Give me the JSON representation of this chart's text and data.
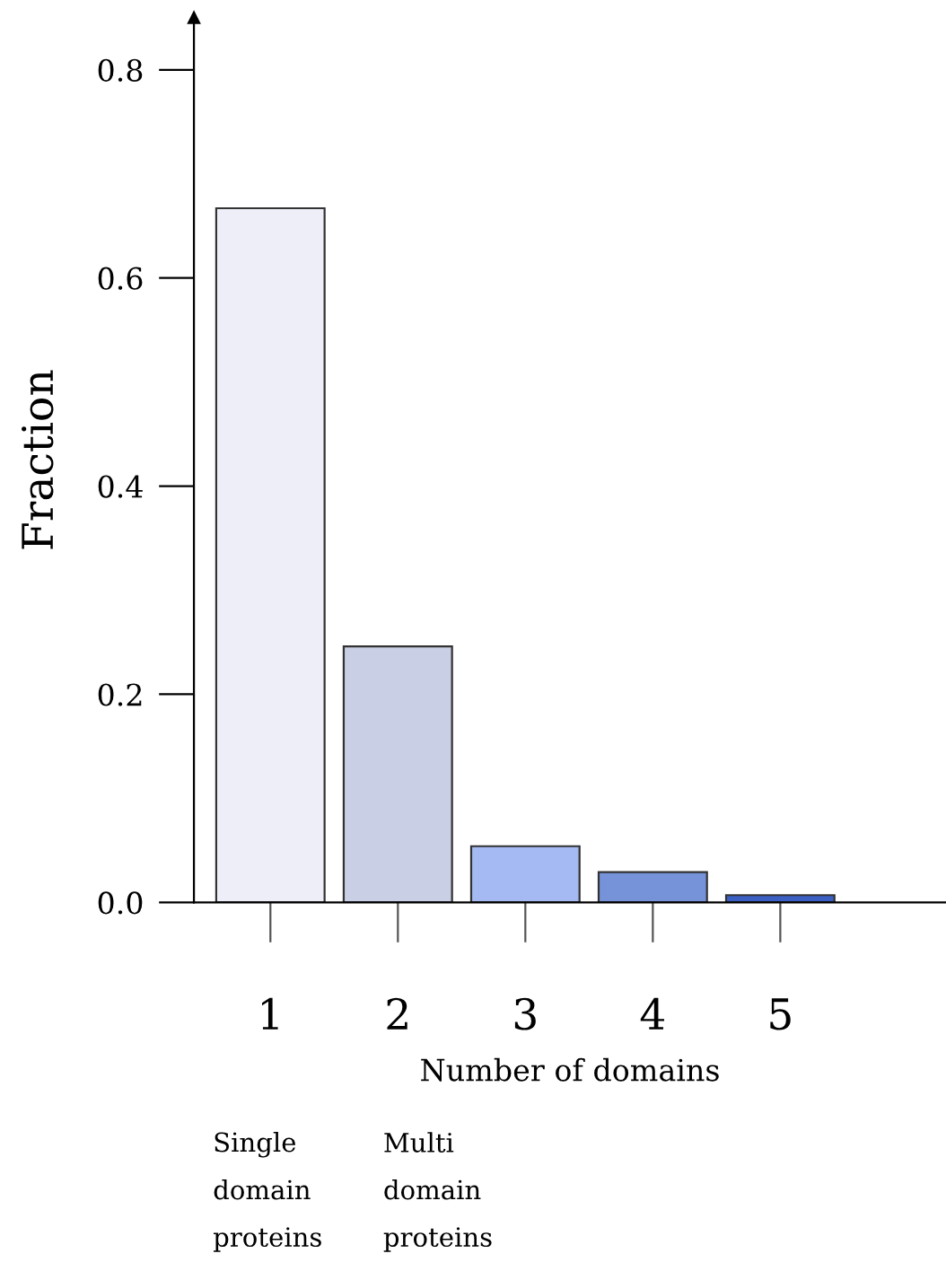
{
  "chart_data": {
    "type": "bar",
    "xlabel": "Number of domains",
    "ylabel": "Fraction",
    "categories": [
      "1",
      "2",
      "3",
      "4",
      "5"
    ],
    "values": [
      0.667,
      0.246,
      0.054,
      0.029,
      0.007
    ],
    "colors": [
      "#eeeef8",
      "#c9cfe4",
      "#a5b9f2",
      "#7693da",
      "#3b5fc2"
    ],
    "ylim": [
      0,
      0.85
    ],
    "yticks": [
      {
        "value": 0,
        "label": "0.0"
      },
      0.2,
      0.4,
      0.6,
      0.8
    ],
    "annotations": [
      "Single\ndomain\nproteins",
      "Multi\ndomain\nproteins"
    ],
    "grid": false,
    "legend": false
  }
}
